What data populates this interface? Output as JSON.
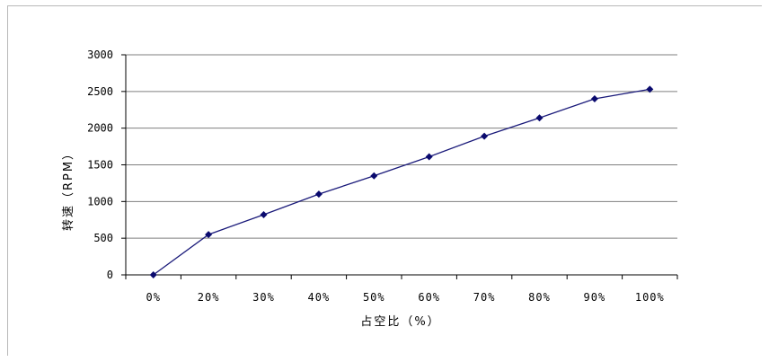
{
  "chart_data": {
    "type": "line",
    "title": "",
    "xlabel": "占空比（%）",
    "ylabel": "转速（RPM）",
    "categories": [
      "0%",
      "20%",
      "30%",
      "40%",
      "50%",
      "60%",
      "70%",
      "80%",
      "90%",
      "100%"
    ],
    "series": [
      {
        "values": [
          0,
          550,
          820,
          1100,
          1350,
          1610,
          1890,
          2140,
          2400,
          2530
        ]
      }
    ],
    "ylim": [
      0,
      3000
    ],
    "yticks": [
      "0",
      "500",
      "1000",
      "1500",
      "2000",
      "2500",
      "3000"
    ],
    "grid": true,
    "legend": "none",
    "colors": {
      "line": "#1a1a7a",
      "marker": "#0a0a6e",
      "grid": "#7f7f7f"
    }
  }
}
